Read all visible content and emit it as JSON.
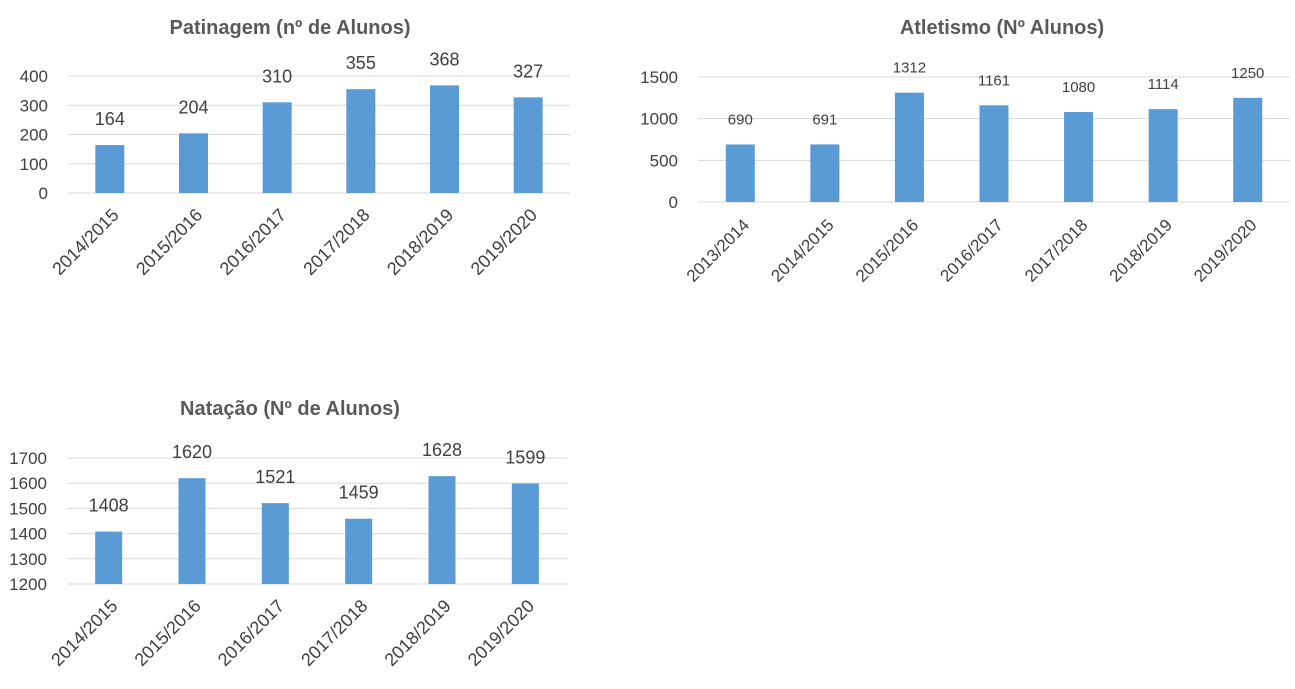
{
  "charts": [
    {
      "id": "patinagem",
      "type": "bar",
      "title": "Patinagem (nº de Alunos)",
      "categories": [
        "2014/2015",
        "2015/2016",
        "2016/2017",
        "2017/2018",
        "2018/2019",
        "2019/2020"
      ],
      "values": [
        164,
        204,
        310,
        355,
        368,
        327
      ],
      "ylim": [
        0,
        400
      ],
      "yticks": [
        0,
        100,
        200,
        300,
        400
      ],
      "grid": true,
      "color": "#5b9bd5"
    },
    {
      "id": "atletismo",
      "type": "bar",
      "title": "Atletismo (Nº Alunos)",
      "categories": [
        "2013/2014",
        "2014/2015",
        "2015/2016",
        "2016/2017",
        "2017/2018",
        "2018/2019",
        "2019/2020"
      ],
      "values": [
        690,
        691,
        1312,
        1161,
        1080,
        1114,
        1250
      ],
      "ylim": [
        0,
        1500
      ],
      "yticks": [
        0,
        500,
        1000,
        1500
      ],
      "grid": true,
      "color": "#5b9bd5"
    },
    {
      "id": "natacao",
      "type": "bar",
      "title": "Natação (Nº de Alunos)",
      "categories": [
        "2014/2015",
        "2015/2016",
        "2016/2017",
        "2017/2018",
        "2018/2019",
        "2019/2020"
      ],
      "values": [
        1408,
        1620,
        1521,
        1459,
        1628,
        1599
      ],
      "ylim": [
        1200,
        1700
      ],
      "yticks": [
        1200,
        1300,
        1400,
        1500,
        1600,
        1700
      ],
      "grid": true,
      "color": "#5b9bd5"
    }
  ]
}
